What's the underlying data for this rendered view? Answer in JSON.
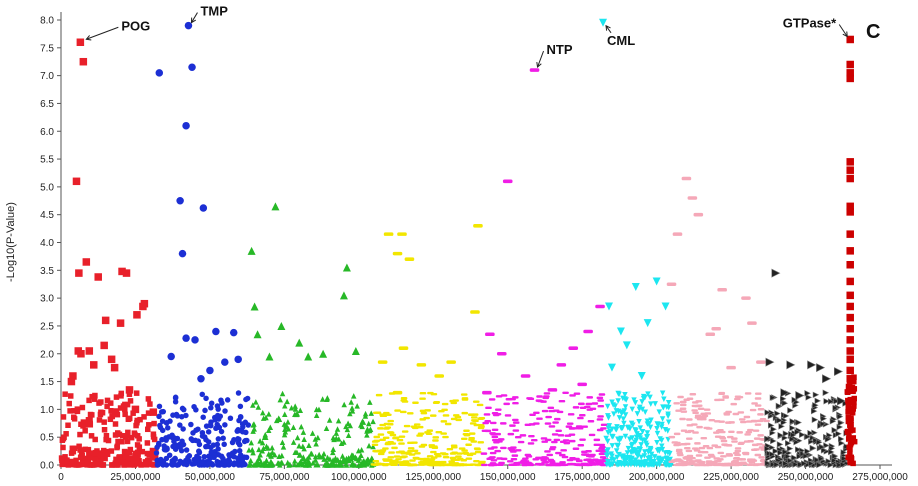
{
  "chart_data": {
    "type": "scatter",
    "title": "",
    "panel_label": "C",
    "xlabel": "",
    "ylabel": "-Log10(P-Value)",
    "xlim": [
      0,
      275000000
    ],
    "ylim": [
      0,
      8.0
    ],
    "x_ticks": [
      0,
      25000000,
      50000000,
      75000000,
      100000000,
      125000000,
      150000000,
      175000000,
      200000000,
      225000000,
      250000000,
      275000000
    ],
    "x_tick_labels": [
      "0",
      "25,000,000",
      "50,000,000",
      "75,000,000",
      "100,000,000",
      "125,000,000",
      "150,000,000",
      "175,000,000",
      "200,000,000",
      "225,000,000",
      "250,000,000",
      "275,000,000"
    ],
    "y_ticks": [
      0.0,
      0.5,
      1.0,
      1.5,
      2.0,
      2.5,
      3.0,
      3.5,
      4.0,
      4.5,
      5.0,
      5.5,
      6.0,
      6.5,
      7.0,
      7.5,
      8.0
    ],
    "y_tick_labels": [
      "0.0",
      "0.5",
      "1.0",
      "1.5",
      "2.0",
      "2.5",
      "3.0",
      "3.5",
      "4.0",
      "4.5",
      "5.0",
      "5.5",
      "6.0",
      "6.5",
      "7.0",
      "7.5",
      "8.0"
    ],
    "grid": false,
    "legend": "none",
    "series": [
      {
        "color": "#e8202a",
        "marker": "square",
        "xrange": [
          0,
          32000000
        ],
        "x": [
          4000000,
          5200000,
          6000000,
          6500000,
          7500000,
          8500000,
          9500000,
          11000000,
          12500000,
          14500000,
          15000000,
          17000000,
          18000000,
          20500000,
          23000000,
          25500000,
          27500000,
          31000000,
          3500000,
          5800000,
          6700000,
          20000000,
          22000000,
          25000000,
          28000000
        ],
        "y": [
          1.6,
          5.1,
          3.45,
          7.6,
          7.25,
          3.65,
          2.05,
          1.8,
          3.38,
          2.15,
          2.6,
          1.9,
          1.75,
          3.48,
          1.35,
          2.7,
          2.85,
          0.95,
          1.5,
          2.05,
          2.0,
          2.55,
          3.45,
          1.0,
          2.9
        ]
      },
      {
        "color": "#1c2fd4",
        "marker": "circle",
        "xrange": [
          32000000,
          63000000
        ],
        "x": [
          33000000,
          42000000,
          42800000,
          44000000,
          40000000,
          47800000,
          40800000,
          42000000,
          52000000,
          58000000,
          59500000,
          47000000,
          37000000,
          45000000,
          55000000,
          50000000
        ],
        "y": [
          7.05,
          6.1,
          7.9,
          7.15,
          4.75,
          4.62,
          3.8,
          2.28,
          2.4,
          2.38,
          1.9,
          1.55,
          1.95,
          2.25,
          1.85,
          1.7
        ]
      },
      {
        "color": "#27b827",
        "marker": "triangle",
        "xrange": [
          63000000,
          105000000
        ],
        "x": [
          64000000,
          65000000,
          72000000,
          66000000,
          74000000,
          70000000,
          80000000,
          83000000,
          96000000,
          95000000,
          99000000,
          88000000
        ],
        "y": [
          3.85,
          2.85,
          4.65,
          2.35,
          2.5,
          1.95,
          2.2,
          1.95,
          3.55,
          3.05,
          2.05,
          2.0
        ]
      },
      {
        "color": "#f2e600",
        "marker": "dash",
        "xrange": [
          105000000,
          142000000
        ],
        "x": [
          110000000,
          114500000,
          113000000,
          115000000,
          117000000,
          108000000,
          121000000,
          127000000,
          131000000,
          140000000,
          139000000,
          113000000
        ],
        "y": [
          4.15,
          4.15,
          3.8,
          2.1,
          3.7,
          1.85,
          1.8,
          1.6,
          1.85,
          4.3,
          2.75,
          1.3
        ]
      },
      {
        "color": "#f01ee6",
        "marker": "dash",
        "xrange": [
          142000000,
          183000000
        ],
        "x": [
          159000000,
          150000000,
          144000000,
          148000000,
          156000000,
          168000000,
          172000000,
          177000000,
          181000000,
          143000000,
          175000000,
          165000000
        ],
        "y": [
          7.1,
          5.1,
          2.35,
          2.0,
          1.6,
          1.8,
          2.1,
          2.4,
          2.85,
          1.3,
          1.45,
          1.35
        ]
      },
      {
        "color": "#1ce6f0",
        "marker": "triangle-down",
        "xrange": [
          183000000,
          205000000
        ],
        "x": [
          182000000,
          184000000,
          188000000,
          193000000,
          197000000,
          200000000,
          203000000,
          190000000,
          195000000,
          185000000
        ],
        "y": [
          7.95,
          2.85,
          2.4,
          3.2,
          2.55,
          3.3,
          2.85,
          2.15,
          1.6,
          1.75
        ]
      },
      {
        "color": "#f5a8b8",
        "marker": "dash",
        "xrange": [
          205000000,
          237000000
        ],
        "x": [
          210000000,
          212000000,
          214000000,
          207000000,
          205000000,
          222000000,
          230000000,
          232000000,
          220000000,
          218000000,
          235000000,
          225000000
        ],
        "y": [
          5.15,
          4.8,
          4.5,
          4.15,
          3.25,
          3.15,
          3.0,
          2.55,
          2.45,
          2.35,
          1.85,
          1.75
        ]
      },
      {
        "color": "#222222",
        "marker": "triangle-right",
        "xrange": [
          237000000,
          264000000
        ],
        "x": [
          240000000,
          238000000,
          245000000,
          252000000,
          257000000,
          261000000,
          255000000,
          248000000,
          262000000,
          243000000
        ],
        "y": [
          3.45,
          1.85,
          1.8,
          1.8,
          1.55,
          1.68,
          1.75,
          1.25,
          1.15,
          1.3
        ]
      },
      {
        "color": "#cc0000",
        "marker": "square",
        "xrange": [
          264000000,
          266500000
        ],
        "x": [
          265000000,
          265000000,
          265000000,
          265000000,
          265000000,
          265000000,
          265000000,
          265000000,
          265000000,
          265000000,
          265000000,
          265000000,
          265000000,
          265000000,
          265000000,
          265000000,
          265000000,
          265000000,
          265000000,
          265000000,
          265000000,
          265000000
        ],
        "y": [
          7.65,
          7.2,
          7.05,
          6.95,
          5.45,
          5.3,
          5.15,
          4.65,
          4.55,
          4.15,
          3.85,
          3.6,
          3.3,
          3.05,
          2.85,
          2.65,
          2.45,
          2.25,
          2.05,
          1.9,
          1.7,
          1.55
        ]
      }
    ],
    "annotations": [
      {
        "label": "POG",
        "x": 7500000,
        "y": 7.6
      },
      {
        "label": "TMP",
        "x": 42800000,
        "y": 7.9
      },
      {
        "label": "NTP",
        "x": 159000000,
        "y": 7.1
      },
      {
        "label": "CML",
        "x": 182000000,
        "y": 7.95
      },
      {
        "label": "GTPase*",
        "x": 265000000,
        "y": 7.65
      }
    ]
  }
}
